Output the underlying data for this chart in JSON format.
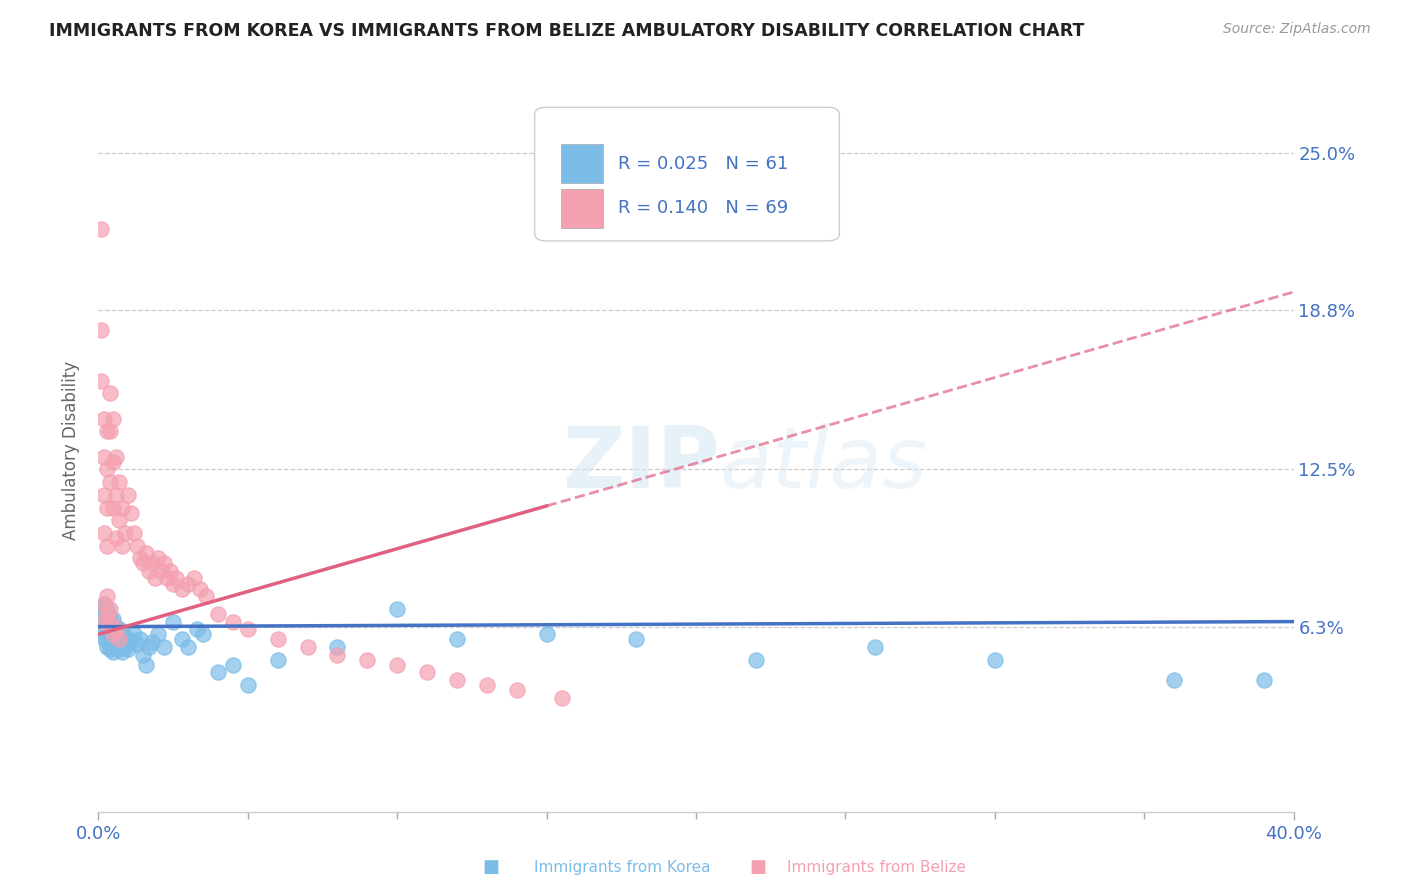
{
  "title": "IMMIGRANTS FROM KOREA VS IMMIGRANTS FROM BELIZE AMBULATORY DISABILITY CORRELATION CHART",
  "source": "Source: ZipAtlas.com",
  "ylabel": "Ambulatory Disability",
  "ytick_labels": [
    "6.3%",
    "12.5%",
    "18.8%",
    "25.0%"
  ],
  "ytick_values": [
    0.063,
    0.125,
    0.188,
    0.25
  ],
  "xmin": 0.0,
  "xmax": 0.4,
  "ymin": -0.01,
  "ymax": 0.275,
  "korea_color": "#7bbce8",
  "belize_color": "#f4a0b0",
  "korea_line_color": "#4472c4",
  "belize_line_color": "#e06080",
  "korea_R": 0.025,
  "korea_N": 61,
  "belize_R": 0.14,
  "belize_N": 69,
  "legend_label_korea": "Immigrants from Korea",
  "legend_label_belize": "Immigrants from Belize",
  "background_color": "#ffffff",
  "grid_color": "#cccccc",
  "title_color": "#222222",
  "axis_label_color": "#4472c4",
  "watermark": "ZIPatlas",
  "korea_trend_y0": 0.063,
  "korea_trend_y1": 0.065,
  "belize_trend_y0": 0.06,
  "belize_trend_y1": 0.195,
  "korea_scatter_x": [
    0.001,
    0.001,
    0.001,
    0.002,
    0.002,
    0.002,
    0.002,
    0.003,
    0.003,
    0.003,
    0.003,
    0.004,
    0.004,
    0.004,
    0.004,
    0.005,
    0.005,
    0.005,
    0.005,
    0.006,
    0.006,
    0.006,
    0.007,
    0.007,
    0.007,
    0.008,
    0.008,
    0.008,
    0.009,
    0.009,
    0.01,
    0.01,
    0.011,
    0.012,
    0.013,
    0.014,
    0.015,
    0.016,
    0.017,
    0.018,
    0.02,
    0.022,
    0.025,
    0.028,
    0.03,
    0.033,
    0.035,
    0.04,
    0.045,
    0.05,
    0.06,
    0.08,
    0.1,
    0.12,
    0.15,
    0.18,
    0.22,
    0.26,
    0.3,
    0.36,
    0.39
  ],
  "korea_scatter_y": [
    0.065,
    0.06,
    0.07,
    0.058,
    0.063,
    0.068,
    0.072,
    0.055,
    0.06,
    0.065,
    0.07,
    0.054,
    0.058,
    0.062,
    0.067,
    0.053,
    0.057,
    0.061,
    0.066,
    0.055,
    0.059,
    0.063,
    0.054,
    0.058,
    0.062,
    0.053,
    0.057,
    0.061,
    0.055,
    0.059,
    0.054,
    0.058,
    0.057,
    0.06,
    0.056,
    0.058,
    0.052,
    0.048,
    0.055,
    0.057,
    0.06,
    0.055,
    0.065,
    0.058,
    0.055,
    0.062,
    0.06,
    0.045,
    0.048,
    0.04,
    0.05,
    0.055,
    0.07,
    0.058,
    0.06,
    0.058,
    0.05,
    0.055,
    0.05,
    0.042,
    0.042
  ],
  "belize_scatter_x": [
    0.001,
    0.001,
    0.001,
    0.002,
    0.002,
    0.002,
    0.002,
    0.003,
    0.003,
    0.003,
    0.003,
    0.004,
    0.004,
    0.004,
    0.005,
    0.005,
    0.005,
    0.006,
    0.006,
    0.006,
    0.007,
    0.007,
    0.008,
    0.008,
    0.009,
    0.01,
    0.011,
    0.012,
    0.013,
    0.014,
    0.015,
    0.016,
    0.017,
    0.018,
    0.019,
    0.02,
    0.021,
    0.022,
    0.023,
    0.024,
    0.025,
    0.026,
    0.028,
    0.03,
    0.032,
    0.034,
    0.036,
    0.04,
    0.045,
    0.05,
    0.06,
    0.07,
    0.08,
    0.09,
    0.1,
    0.11,
    0.12,
    0.13,
    0.14,
    0.155,
    0.002,
    0.002,
    0.003,
    0.003,
    0.004,
    0.004,
    0.005,
    0.006,
    0.007
  ],
  "belize_scatter_y": [
    0.22,
    0.18,
    0.16,
    0.145,
    0.13,
    0.115,
    0.1,
    0.14,
    0.125,
    0.11,
    0.095,
    0.155,
    0.14,
    0.12,
    0.145,
    0.128,
    0.11,
    0.13,
    0.115,
    0.098,
    0.12,
    0.105,
    0.11,
    0.095,
    0.1,
    0.115,
    0.108,
    0.1,
    0.095,
    0.09,
    0.088,
    0.092,
    0.085,
    0.088,
    0.082,
    0.09,
    0.085,
    0.088,
    0.082,
    0.085,
    0.08,
    0.082,
    0.078,
    0.08,
    0.082,
    0.078,
    0.075,
    0.068,
    0.065,
    0.062,
    0.058,
    0.055,
    0.052,
    0.05,
    0.048,
    0.045,
    0.042,
    0.04,
    0.038,
    0.035,
    0.065,
    0.072,
    0.068,
    0.075,
    0.07,
    0.065,
    0.06,
    0.062,
    0.058
  ]
}
